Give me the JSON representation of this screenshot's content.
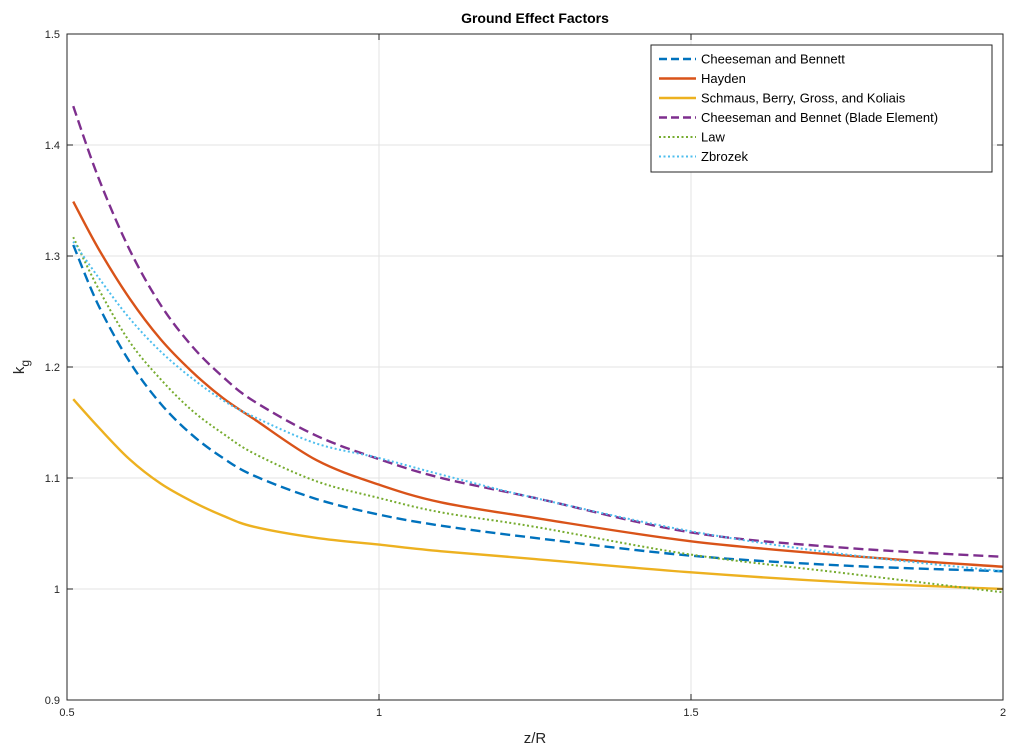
{
  "chart_data": {
    "type": "line",
    "title": "Ground Effect Factors",
    "xlabel": "z/R",
    "ylabel": {
      "base": "k",
      "subscript": "g"
    },
    "xlim": [
      0.5,
      2
    ],
    "ylim": [
      0.9,
      1.5
    ],
    "xticks": [
      0.5,
      1,
      1.5,
      2
    ],
    "xtick_labels": [
      "0.5",
      "1",
      "1.5",
      "2"
    ],
    "yticks": [
      0.9,
      1,
      1.1,
      1.2,
      1.3,
      1.4,
      1.5
    ],
    "ytick_labels": [
      "0.9",
      "1",
      "1.1",
      "1.2",
      "1.3",
      "1.4",
      "1.5"
    ],
    "grid": true,
    "legend_position": "top-right",
    "x": [
      0.51,
      0.55,
      0.6,
      0.65,
      0.7,
      0.75,
      0.8,
      0.9,
      1.0,
      1.1,
      1.25,
      1.5,
      1.75,
      2.0
    ],
    "series": [
      {
        "name": "Cheeseman and Bennett",
        "color": "#0072BD",
        "style": "dashed",
        "values": [
          1.31,
          1.256,
          1.205,
          1.167,
          1.139,
          1.118,
          1.102,
          1.081,
          1.067,
          1.057,
          1.046,
          1.03,
          1.021,
          1.016
        ]
      },
      {
        "name": "Hayden",
        "color": "#D95319",
        "style": "solid",
        "values": [
          1.349,
          1.307,
          1.262,
          1.225,
          1.196,
          1.172,
          1.153,
          1.116,
          1.094,
          1.078,
          1.064,
          1.043,
          1.03,
          1.02
        ]
      },
      {
        "name": "Schmaus, Berry, Gross, and Koliais",
        "color": "#EDB120",
        "style": "solid",
        "values": [
          1.171,
          1.146,
          1.117,
          1.095,
          1.079,
          1.066,
          1.056,
          1.046,
          1.04,
          1.034,
          1.027,
          1.015,
          1.006,
          1.0
        ]
      },
      {
        "name": "Cheeseman and Bennet (Blade Element)",
        "color": "#7E2F8E",
        "style": "dashed",
        "values": [
          1.435,
          1.371,
          1.306,
          1.256,
          1.219,
          1.191,
          1.169,
          1.138,
          1.117,
          1.1,
          1.082,
          1.051,
          1.037,
          1.029
        ]
      },
      {
        "name": "Law",
        "color": "#77AC30",
        "style": "dotted",
        "values": [
          1.317,
          1.271,
          1.223,
          1.189,
          1.161,
          1.14,
          1.122,
          1.097,
          1.082,
          1.069,
          1.056,
          1.031,
          1.014,
          0.997
        ]
      },
      {
        "name": "Zbrozek",
        "color": "#4DBEEE",
        "style": "dotted",
        "values": [
          1.313,
          1.281,
          1.244,
          1.214,
          1.19,
          1.17,
          1.155,
          1.131,
          1.118,
          1.103,
          1.082,
          1.052,
          1.031,
          1.016
        ]
      }
    ]
  }
}
